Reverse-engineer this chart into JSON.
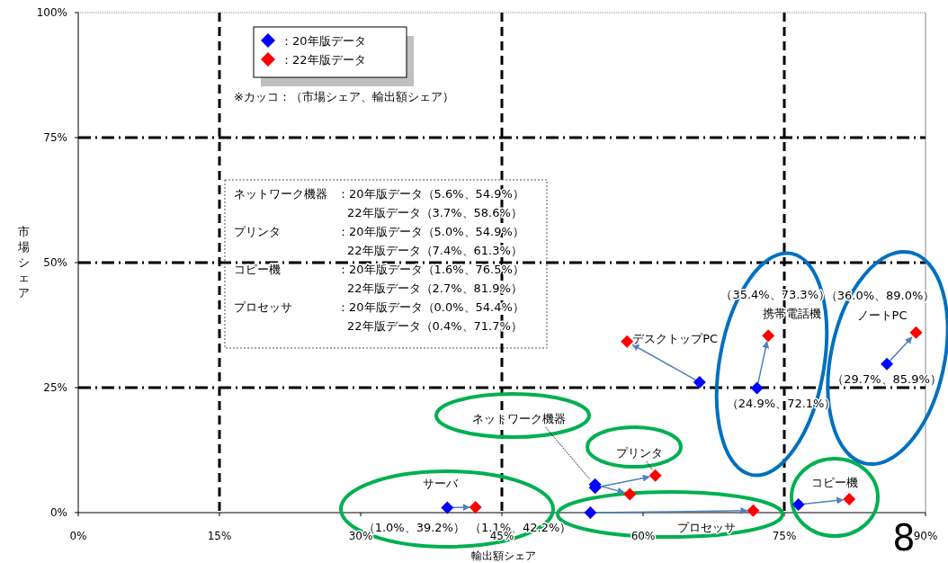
{
  "chart_data": {
    "type": "scatter",
    "xlabel": "輸出額シェア",
    "ylabel": "市場シェア",
    "marker": "diamond",
    "legend": "top left",
    "xlim": [
      0,
      90
    ],
    "ylim": [
      0,
      100
    ],
    "xticks": [
      {
        "value": 0,
        "label": "0%"
      },
      {
        "value": 15,
        "label": "15%"
      },
      {
        "value": 30,
        "label": "30%"
      },
      {
        "value": 45,
        "label": "45%"
      },
      {
        "value": 60,
        "label": "60%"
      },
      {
        "value": 75,
        "label": "75%"
      },
      {
        "value": 90,
        "label": "90%"
      }
    ],
    "yticks": [
      {
        "value": 0,
        "label": "0%"
      },
      {
        "value": 25,
        "label": "25%"
      },
      {
        "value": 50,
        "label": "50%"
      },
      {
        "value": 75,
        "label": "75%"
      },
      {
        "value": 100,
        "label": "100%"
      }
    ],
    "series": [
      {
        "name": "：20年版データ",
        "color": "#0000ff",
        "x": [
          39.2,
          54.9,
          54.9,
          76.5,
          54.4,
          72.1,
          85.9,
          66.0
        ],
        "values": [
          1.0,
          5.6,
          5.0,
          1.6,
          0.0,
          24.9,
          29.7,
          26.1
        ]
      },
      {
        "name": "：22年版データ",
        "color": "#ff0000",
        "x": [
          42.2,
          58.6,
          61.3,
          81.9,
          71.7,
          73.3,
          89.0,
          58.3
        ],
        "values": [
          1.1,
          3.7,
          7.4,
          2.7,
          0.4,
          35.4,
          36.0,
          34.2
        ]
      }
    ],
    "ref_lines": [
      {
        "axis": "x",
        "value": 15,
        "line_style": "dashed",
        "color": "#000000"
      },
      {
        "axis": "x",
        "value": 45,
        "line_style": "dashed",
        "color": "#000000"
      },
      {
        "axis": "x",
        "value": 75,
        "line_style": "dashed",
        "color": "#000000"
      },
      {
        "axis": "y",
        "value": 25,
        "line_style": "dashdot",
        "color": "#000000"
      },
      {
        "axis": "y",
        "value": 50,
        "line_style": "dashdot",
        "color": "#000000"
      },
      {
        "axis": "y",
        "value": 75,
        "line_style": "dashdot",
        "color": "#000000"
      }
    ],
    "annotations": [
      {
        "text": "サーバ",
        "x": 39.2,
        "y": 1.0
      },
      {
        "text": "ネットワーク機器",
        "x": 54.9,
        "y": 5.6
      },
      {
        "text": "プリンタ",
        "x": 61.3,
        "y": 7.4
      },
      {
        "text": "コピー機",
        "x": 81.9,
        "y": 2.7
      },
      {
        "text": "プロセッサ",
        "x": 71.7,
        "y": 0.4
      },
      {
        "text": "携帯電話機",
        "x": 73.3,
        "y": 35.4
      },
      {
        "text": "ノートPC",
        "x": 89.0,
        "y": 36.0
      },
      {
        "text": "デスクトップPC",
        "x": 58.3,
        "y": 34.2
      },
      {
        "text": "（1.0%、39.2%）",
        "x": 39.2,
        "y": 1.0
      },
      {
        "text": "（1.1%、42.2%）",
        "x": 42.2,
        "y": 1.1
      },
      {
        "text": "（24.9%、72.1%）",
        "x": 72.1,
        "y": 24.9
      },
      {
        "text": "（35.4%、73.3%）",
        "x": 73.3,
        "y": 35.4
      },
      {
        "text": "（36.0%、89.0%）",
        "x": 89.0,
        "y": 36.0
      },
      {
        "text": "（29.7%、85.9%）",
        "x": 85.9,
        "y": 29.7
      },
      "※カッコ：（市場シェア、輸出額シェア）",
      "ネットワーク機器：20年版データ（5.6%、54.9%）",
      "22年版データ（3.7%、58.6%）",
      "プリンタ：20年版データ（5.0%、54.9%）",
      "22年版データ（7.4%、61.3%）",
      "コピー機：20年版データ（1.6%、76.5%）",
      "22年版データ（2.7%、81.9%）",
      "プロセッサ：20年版データ（0.0%、54.4%）",
      "22年版データ（0.4%、71.7%）",
      "8"
    ]
  }
}
